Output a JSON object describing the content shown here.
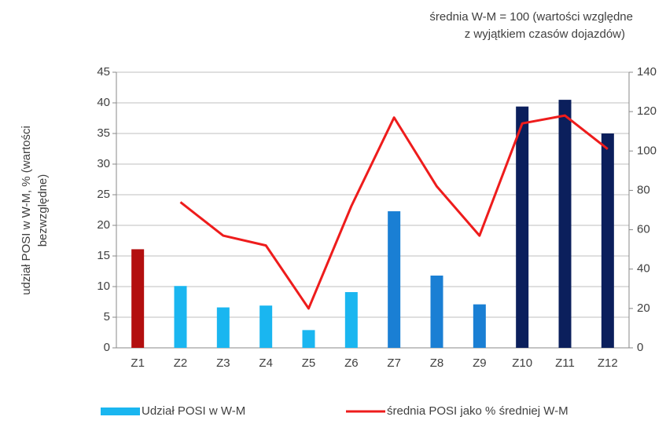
{
  "chart_data": {
    "type": "bar_line",
    "annotation": [
      "średnia W-M = 100 (wartości względne",
      "z wyjątkiem czasów dojazdów)"
    ],
    "ylabel": [
      "udział POSI w W-M, % (wartości",
      "bezwzględne)"
    ],
    "categories": [
      "Z1",
      "Z2",
      "Z3",
      "Z4",
      "Z5",
      "Z6",
      "Z7",
      "Z8",
      "Z9",
      "Z10",
      "Z11",
      "Z12"
    ],
    "series": [
      {
        "name": "Udział POSI w W-M",
        "type": "bar",
        "color": "#1ab6f0",
        "colors": [
          "#b30f0f",
          "#1ab6f0",
          "#1ab6f0",
          "#1ab6f0",
          "#1ab6f0",
          "#1ab6f0",
          "#1a7fd4",
          "#1a7fd4",
          "#1a7fd4",
          "#0b1f5c",
          "#0b1f5c",
          "#0b1f5c"
        ],
        "values": [
          16.1,
          10.1,
          6.6,
          6.9,
          2.9,
          9.1,
          22.3,
          11.8,
          7.1,
          39.4,
          40.5,
          35
        ]
      },
      {
        "name": "średnia POSI jako % średniej W-M",
        "type": "line",
        "axis": "y2",
        "color": "#ee1c1c",
        "values": [
          null,
          74,
          57,
          52,
          20,
          72,
          117,
          82,
          57,
          114,
          118,
          101
        ]
      }
    ],
    "ylim": [
      0,
      45
    ],
    "yticks": [
      0,
      5,
      10,
      15,
      20,
      25,
      30,
      35,
      40,
      45
    ],
    "y2lim": [
      0,
      140
    ],
    "y2ticks": [
      0,
      20,
      40,
      60,
      80,
      100,
      120,
      140
    ],
    "grid": true
  }
}
